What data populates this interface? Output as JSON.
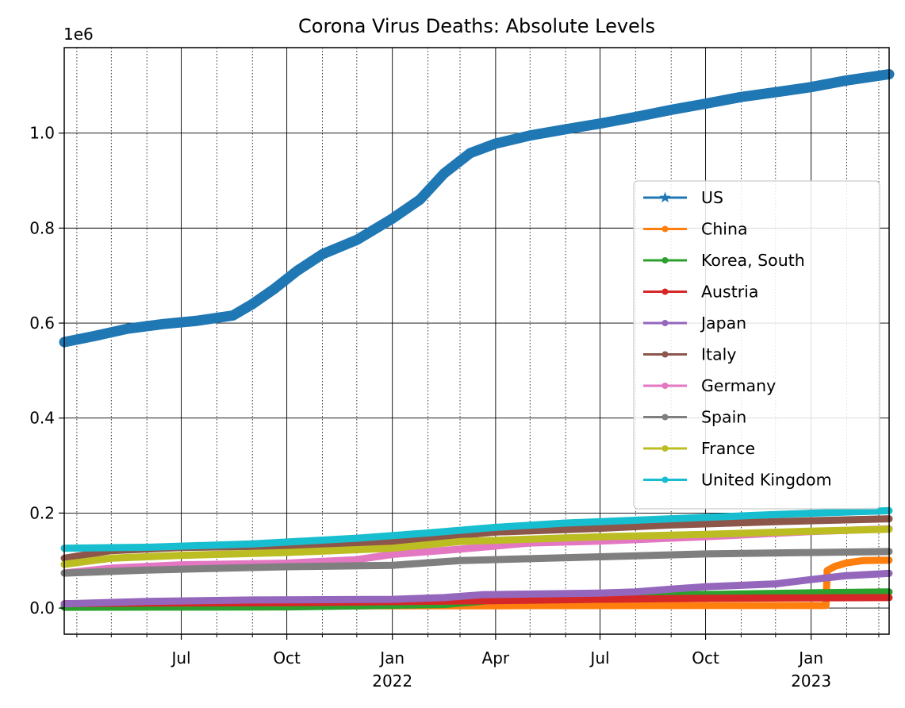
{
  "chart_data": {
    "type": "line",
    "title": "Corona Virus Deaths: Absolute Levels",
    "xlabel": "",
    "ylabel": "",
    "y_offset_label": "1e6",
    "x_range": [
      "2021-03-21",
      "2023-03-10"
    ],
    "ylim": [
      -55000,
      1180000
    ],
    "y_ticks": [
      {
        "value": 0,
        "label": "0.0"
      },
      {
        "value": 200000,
        "label": "0.2"
      },
      {
        "value": 400000,
        "label": "0.4"
      },
      {
        "value": 600000,
        "label": "0.6"
      },
      {
        "value": 800000,
        "label": "0.8"
      },
      {
        "value": 1000000,
        "label": "1.0"
      }
    ],
    "x_major_ticks": [
      {
        "date": "2021-07-01",
        "label": "Jul",
        "sublabel": ""
      },
      {
        "date": "2021-10-01",
        "label": "Oct",
        "sublabel": ""
      },
      {
        "date": "2022-01-01",
        "label": "Jan",
        "sublabel": "2022"
      },
      {
        "date": "2022-04-01",
        "label": "Apr",
        "sublabel": ""
      },
      {
        "date": "2022-07-01",
        "label": "Jul",
        "sublabel": ""
      },
      {
        "date": "2022-10-01",
        "label": "Oct",
        "sublabel": ""
      },
      {
        "date": "2023-01-01",
        "label": "Jan",
        "sublabel": "2023"
      }
    ],
    "x_minor_ticks": [
      "2021-04-01",
      "2021-05-01",
      "2021-06-01",
      "2021-08-01",
      "2021-09-01",
      "2021-11-01",
      "2021-12-01",
      "2022-02-01",
      "2022-03-01",
      "2022-05-01",
      "2022-06-01",
      "2022-08-01",
      "2022-09-01",
      "2022-11-01",
      "2022-12-01",
      "2023-02-01",
      "2023-03-01"
    ],
    "grid": true,
    "legend_position": "right",
    "series": [
      {
        "name": "US",
        "color": "#1f77b4",
        "marker": "star",
        "points": [
          [
            "2021-03-21",
            560000
          ],
          [
            "2021-04-15",
            572000
          ],
          [
            "2021-05-15",
            588000
          ],
          [
            "2021-06-15",
            598000
          ],
          [
            "2021-07-15",
            605000
          ],
          [
            "2021-08-15",
            616000
          ],
          [
            "2021-09-01",
            640000
          ],
          [
            "2021-09-20",
            672000
          ],
          [
            "2021-10-10",
            710000
          ],
          [
            "2021-11-01",
            745000
          ],
          [
            "2021-12-01",
            775000
          ],
          [
            "2022-01-01",
            820000
          ],
          [
            "2022-01-25",
            860000
          ],
          [
            "2022-02-15",
            915000
          ],
          [
            "2022-03-10",
            958000
          ],
          [
            "2022-04-01",
            978000
          ],
          [
            "2022-05-01",
            995000
          ],
          [
            "2022-06-01",
            1008000
          ],
          [
            "2022-07-01",
            1020000
          ],
          [
            "2022-08-01",
            1034000
          ],
          [
            "2022-09-01",
            1049000
          ],
          [
            "2022-10-01",
            1062000
          ],
          [
            "2022-11-01",
            1076000
          ],
          [
            "2022-12-01",
            1086000
          ],
          [
            "2023-01-01",
            1097000
          ],
          [
            "2023-02-01",
            1111000
          ],
          [
            "2023-03-10",
            1124000
          ]
        ]
      },
      {
        "name": "China",
        "color": "#ff7f0e",
        "marker": "dot",
        "points": [
          [
            "2021-03-21",
            4636
          ],
          [
            "2022-04-01",
            4700
          ],
          [
            "2022-05-01",
            5200
          ],
          [
            "2022-12-01",
            5250
          ],
          [
            "2023-01-14",
            5300
          ],
          [
            "2023-01-15",
            79000
          ],
          [
            "2023-01-22",
            88000
          ],
          [
            "2023-02-01",
            95000
          ],
          [
            "2023-02-15",
            100000
          ],
          [
            "2023-03-10",
            101000
          ]
        ]
      },
      {
        "name": "Korea, South",
        "color": "#2ca02c",
        "marker": "dot",
        "points": [
          [
            "2021-03-21",
            1700
          ],
          [
            "2021-07-01",
            2030
          ],
          [
            "2021-10-01",
            2500
          ],
          [
            "2021-12-01",
            4500
          ],
          [
            "2022-01-01",
            5800
          ],
          [
            "2022-02-15",
            7500
          ],
          [
            "2022-03-15",
            13000
          ],
          [
            "2022-04-15",
            21000
          ],
          [
            "2022-06-01",
            24000
          ],
          [
            "2022-08-01",
            25500
          ],
          [
            "2022-09-15",
            28000
          ],
          [
            "2023-01-01",
            32000
          ],
          [
            "2023-03-10",
            34000
          ]
        ]
      },
      {
        "name": "Austria",
        "color": "#d62728",
        "marker": "dot",
        "points": [
          [
            "2021-03-21",
            9200
          ],
          [
            "2021-06-01",
            10600
          ],
          [
            "2021-10-01",
            11100
          ],
          [
            "2022-01-01",
            13500
          ],
          [
            "2022-04-01",
            15500
          ],
          [
            "2022-07-01",
            18500
          ],
          [
            "2022-10-01",
            20500
          ],
          [
            "2023-01-01",
            21500
          ],
          [
            "2023-03-10",
            22000
          ]
        ]
      },
      {
        "name": "Japan",
        "color": "#9467bd",
        "marker": "dot",
        "points": [
          [
            "2021-03-21",
            8900
          ],
          [
            "2021-06-01",
            14000
          ],
          [
            "2021-09-01",
            17000
          ],
          [
            "2022-01-01",
            18400
          ],
          [
            "2022-02-15",
            22000
          ],
          [
            "2022-03-20",
            28000
          ],
          [
            "2022-07-01",
            31500
          ],
          [
            "2022-08-01",
            34000
          ],
          [
            "2022-09-01",
            40000
          ],
          [
            "2022-10-01",
            45000
          ],
          [
            "2022-12-01",
            51000
          ],
          [
            "2023-01-01",
            60000
          ],
          [
            "2023-01-31",
            68000
          ],
          [
            "2023-03-10",
            73000
          ]
        ]
      },
      {
        "name": "Italy",
        "color": "#8c564b",
        "marker": "dot",
        "points": [
          [
            "2021-03-21",
            105000
          ],
          [
            "2021-05-01",
            121000
          ],
          [
            "2021-07-01",
            127500
          ],
          [
            "2021-10-01",
            131000
          ],
          [
            "2022-01-01",
            138000
          ],
          [
            "2022-02-15",
            150000
          ],
          [
            "2022-04-01",
            160000
          ],
          [
            "2022-07-01",
            168000
          ],
          [
            "2022-09-01",
            175000
          ],
          [
            "2022-12-01",
            182000
          ],
          [
            "2023-03-10",
            188000
          ]
        ]
      },
      {
        "name": "Germany",
        "color": "#e377c2",
        "marker": "dot",
        "points": [
          [
            "2021-03-21",
            74000
          ],
          [
            "2021-05-01",
            84000
          ],
          [
            "2021-07-01",
            91000
          ],
          [
            "2021-10-01",
            94500
          ],
          [
            "2021-12-01",
            102000
          ],
          [
            "2022-01-01",
            113000
          ],
          [
            "2022-03-01",
            124000
          ],
          [
            "2022-05-01",
            137000
          ],
          [
            "2022-07-01",
            141000
          ],
          [
            "2022-10-01",
            150000
          ],
          [
            "2023-01-01",
            161000
          ],
          [
            "2023-03-10",
            167000
          ]
        ]
      },
      {
        "name": "Spain",
        "color": "#7f7f7f",
        "marker": "dot",
        "points": [
          [
            "2021-03-21",
            73500
          ],
          [
            "2021-06-01",
            80000
          ],
          [
            "2021-10-01",
            87000
          ],
          [
            "2022-01-01",
            90000
          ],
          [
            "2022-03-01",
            100000
          ],
          [
            "2022-07-01",
            108000
          ],
          [
            "2022-10-01",
            114000
          ],
          [
            "2023-01-01",
            117000
          ],
          [
            "2023-03-10",
            119000
          ]
        ]
      },
      {
        "name": "France",
        "color": "#bcbd22",
        "marker": "dot",
        "points": [
          [
            "2021-03-21",
            92000
          ],
          [
            "2021-05-01",
            105000
          ],
          [
            "2021-07-01",
            111000
          ],
          [
            "2021-10-01",
            117000
          ],
          [
            "2022-01-01",
            126000
          ],
          [
            "2022-03-01",
            140000
          ],
          [
            "2022-07-01",
            150000
          ],
          [
            "2022-10-01",
            155000
          ],
          [
            "2023-01-01",
            162000
          ],
          [
            "2023-03-10",
            166000
          ]
        ]
      },
      {
        "name": "United Kingdom",
        "color": "#17becf",
        "marker": "dot",
        "points": [
          [
            "2021-03-21",
            126000
          ],
          [
            "2021-06-01",
            128000
          ],
          [
            "2021-09-01",
            135000
          ],
          [
            "2021-12-01",
            147000
          ],
          [
            "2022-02-01",
            158000
          ],
          [
            "2022-04-01",
            170000
          ],
          [
            "2022-06-01",
            179000
          ],
          [
            "2022-09-01",
            188000
          ],
          [
            "2022-12-01",
            197000
          ],
          [
            "2023-03-10",
            205000
          ]
        ]
      }
    ]
  }
}
